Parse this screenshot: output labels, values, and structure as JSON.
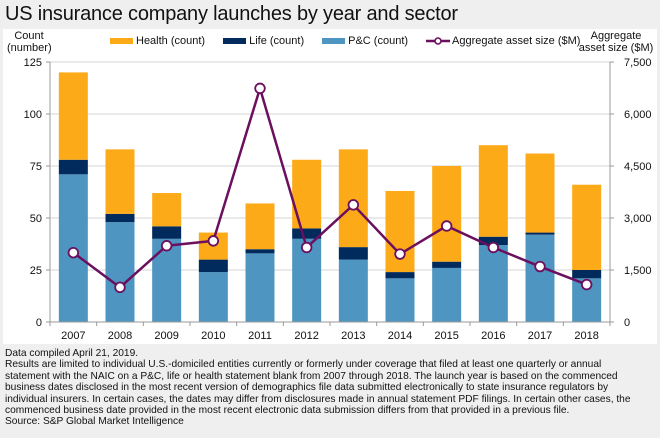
{
  "title": "US insurance company launches by year and sector",
  "left_axis_title": [
    "Count",
    "(number)"
  ],
  "right_axis_title": [
    "Aggregate",
    "asset size ($M)"
  ],
  "legend": [
    {
      "label": "Health (count)",
      "kind": "bar",
      "color": "#FDAA19"
    },
    {
      "label": "Life (count)",
      "kind": "bar",
      "color": "#002B5C"
    },
    {
      "label": "P&C (count)",
      "kind": "bar",
      "color": "#4E96C1"
    },
    {
      "label": "Aggregate asset size ($M)",
      "kind": "line",
      "color": "#6B0F5F"
    }
  ],
  "notes": [
    "Data compiled April 21, 2019.",
    "Results are limited to individual U.S.-domiciled entities currently or formerly under coverage that filed at least one quarterly or annual",
    "statement with the NAIC on a P&C, life or health statement blank from 2007 through 2018. The launch year is based on the commenced",
    "business dates disclosed in the most recent version of demographics file data submitted electronically to state insurance regulators by",
    "individual insurers. In certain cases, the dates may differ from disclosures made in annual statement PDF filings. In certain other cases, the",
    "commenced business date provided in the most recent electronic data submission differs from that provided in a previous file.",
    "Source: S&P Global Market Intelligence"
  ],
  "chart_data": {
    "type": "bar",
    "stacked": true,
    "title": "US insurance company launches by year and sector",
    "xlabel": "",
    "ylabel": "Count (number)",
    "y2label": "Aggregate asset size ($M)",
    "categories": [
      "2007",
      "2008",
      "2009",
      "2010",
      "2011",
      "2012",
      "2013",
      "2014",
      "2015",
      "2016",
      "2017",
      "2018"
    ],
    "ylim": [
      0,
      125
    ],
    "yticks": [
      0,
      25,
      50,
      75,
      100,
      125
    ],
    "ytick_labels": [
      "0",
      "25",
      "50",
      "75",
      "100",
      "125"
    ],
    "y2lim": [
      0,
      7500
    ],
    "y2ticks": [
      0,
      1500,
      3000,
      4500,
      6000,
      7500
    ],
    "y2tick_labels": [
      "0",
      "1,500",
      "3,000",
      "4,500",
      "6,000",
      "7,500"
    ],
    "grid": true,
    "legend_position": "top",
    "series": [
      {
        "name": "P&C (count)",
        "type": "bar",
        "axis": "left",
        "color": "#4E96C1",
        "values": [
          71,
          48,
          40,
          24,
          33,
          40,
          30,
          21,
          26,
          37,
          42,
          21
        ]
      },
      {
        "name": "Life (count)",
        "type": "bar",
        "axis": "left",
        "color": "#002B5C",
        "values": [
          7,
          4,
          6,
          6,
          2,
          5,
          6,
          3,
          3,
          4,
          1,
          4
        ]
      },
      {
        "name": "Health (count)",
        "type": "bar",
        "axis": "left",
        "color": "#FDAA19",
        "values": [
          42,
          31,
          16,
          13,
          22,
          33,
          47,
          39,
          46,
          44,
          38,
          41
        ]
      },
      {
        "name": "Aggregate asset size ($M)",
        "type": "line",
        "axis": "right",
        "color": "#6B0F5F",
        "values": [
          2000,
          1000,
          2200,
          2340,
          6740,
          2150,
          3380,
          1960,
          2770,
          2150,
          1600,
          1080
        ]
      }
    ]
  }
}
